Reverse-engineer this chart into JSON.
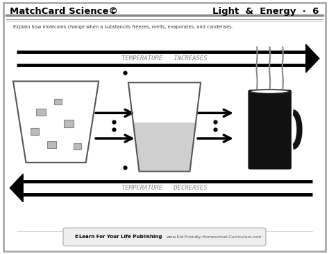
{
  "title_left": "MatchCard Science©",
  "title_right": "Light  &  Energy  ·  6",
  "subtitle": "Explain how molecules change when a substances freezes, melts, evaporates, and condenses.",
  "temp_increases": "TEMPERATURE   INCREASES",
  "temp_decreases": "TEMPERATURE   DECREASES",
  "footer_left": "©Learn For Your Life Publishing",
  "footer_right": "www.Kid-Friendly-Homeschool-Curriculum.com",
  "border_color": "#aaaaaa",
  "arrow_color": "#111111",
  "text_gray": "#999999"
}
